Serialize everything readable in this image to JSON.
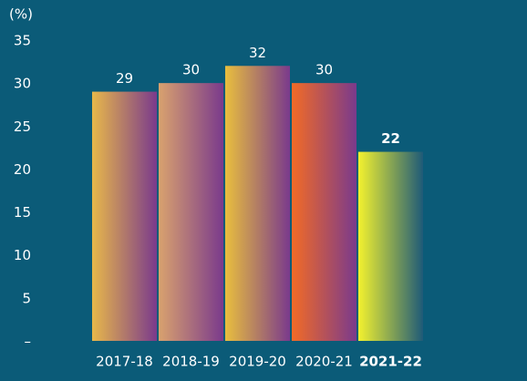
{
  "chart_data": {
    "type": "bar",
    "y_label": "(%)",
    "categories": [
      "2017-18",
      "2018-19",
      "2019-20",
      "2020-21",
      "2021-22"
    ],
    "values": [
      29,
      30,
      32,
      30,
      22
    ],
    "colors": [
      [
        "#e8b84a",
        "#7a3a8c"
      ],
      [
        "#d9a26e",
        "#7a3a8c"
      ],
      [
        "#e9bf3e",
        "#7a3a8c"
      ],
      [
        "#f26b26",
        "#7a3a8c"
      ],
      [
        "#f3f22e",
        "#1e5a78"
      ]
    ],
    "highlight": 4,
    "ylim": [
      0,
      35
    ],
    "yticks": [
      {
        "value": 0,
        "label": "–"
      },
      5,
      10,
      15,
      20,
      25,
      30,
      35
    ],
    "grid": false
  }
}
